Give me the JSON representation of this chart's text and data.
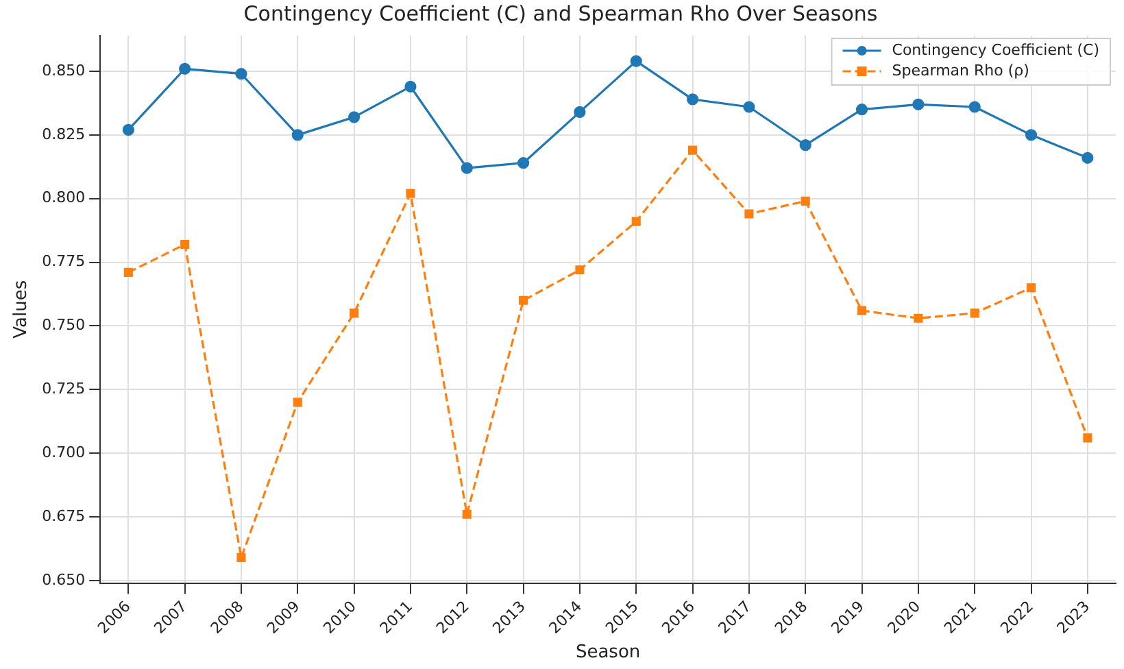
{
  "chart_data": {
    "type": "line",
    "title": "Contingency Coefficient (C) and Spearman Rho Over Seasons",
    "xlabel": "Season",
    "ylabel": "Values",
    "categories": [
      "2006",
      "2007",
      "2008",
      "2009",
      "2010",
      "2011",
      "2012",
      "2013",
      "2014",
      "2015",
      "2016",
      "2017",
      "2018",
      "2019",
      "2020",
      "2021",
      "2022",
      "2023"
    ],
    "series": [
      {
        "name": "Contingency Coefficient (C)",
        "color": "#1f77b4",
        "marker": "circle",
        "line_style": "solid",
        "values": [
          0.827,
          0.851,
          0.849,
          0.825,
          0.832,
          0.844,
          0.812,
          0.814,
          0.834,
          0.854,
          0.839,
          0.836,
          0.821,
          0.835,
          0.837,
          0.836,
          0.825,
          0.816
        ]
      },
      {
        "name": "Spearman Rho (ρ)",
        "color": "#ff7f0e",
        "marker": "square",
        "line_style": "dashed",
        "values": [
          0.771,
          0.782,
          0.659,
          0.72,
          0.755,
          0.802,
          0.676,
          0.76,
          0.772,
          0.791,
          0.819,
          0.794,
          0.799,
          0.756,
          0.753,
          0.755,
          0.765,
          0.706
        ]
      }
    ],
    "ylim": [
      0.649,
      0.864
    ],
    "yticks": [
      {
        "value": 0.65,
        "label": "0.650"
      },
      {
        "value": 0.675,
        "label": "0.675"
      },
      {
        "value": 0.7,
        "label": "0.700"
      },
      {
        "value": 0.725,
        "label": "0.725"
      },
      {
        "value": 0.75,
        "label": "0.750"
      },
      {
        "value": 0.775,
        "label": "0.775"
      },
      {
        "value": 0.8,
        "label": "0.800"
      },
      {
        "value": 0.825,
        "label": "0.825"
      },
      {
        "value": 0.85,
        "label": "0.850"
      }
    ],
    "grid": true,
    "legend": "top right"
  }
}
